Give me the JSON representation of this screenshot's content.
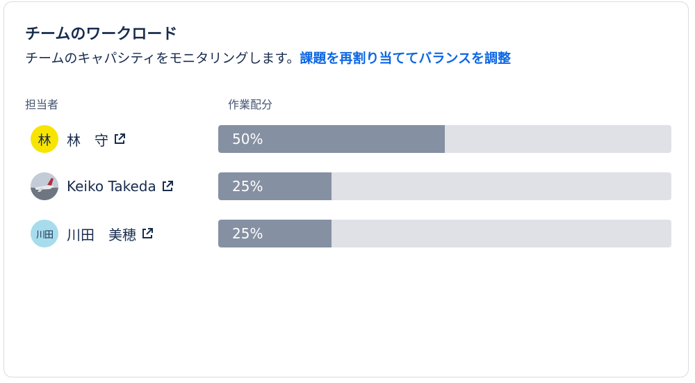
{
  "header": {
    "title": "チームのワークロード",
    "subtitle": "チームのキャパシティをモニタリングします。",
    "link": "課題を再割り当ててバランスを調整"
  },
  "columns": {
    "assignee": "担当者",
    "allocation": "作業配分"
  },
  "rows": [
    {
      "avatar_text": "林",
      "name": "林　守",
      "percent_label": "50%",
      "fraction": 0.5
    },
    {
      "avatar_text": "",
      "name": "Keiko Takeda",
      "percent_label": "25%",
      "fraction": 0.25
    },
    {
      "avatar_text": "川田",
      "name": "川田　美穂",
      "percent_label": "25%",
      "fraction": 0.25
    }
  ],
  "colors": {
    "bar_fill": "#8590a2",
    "bar_track": "#dfe1e6",
    "link": "#0c66e4",
    "avatar_hayashi": "#f7e400",
    "avatar_kawada": "#a7dcec"
  },
  "icons": {
    "external_link": "external-link-icon"
  }
}
